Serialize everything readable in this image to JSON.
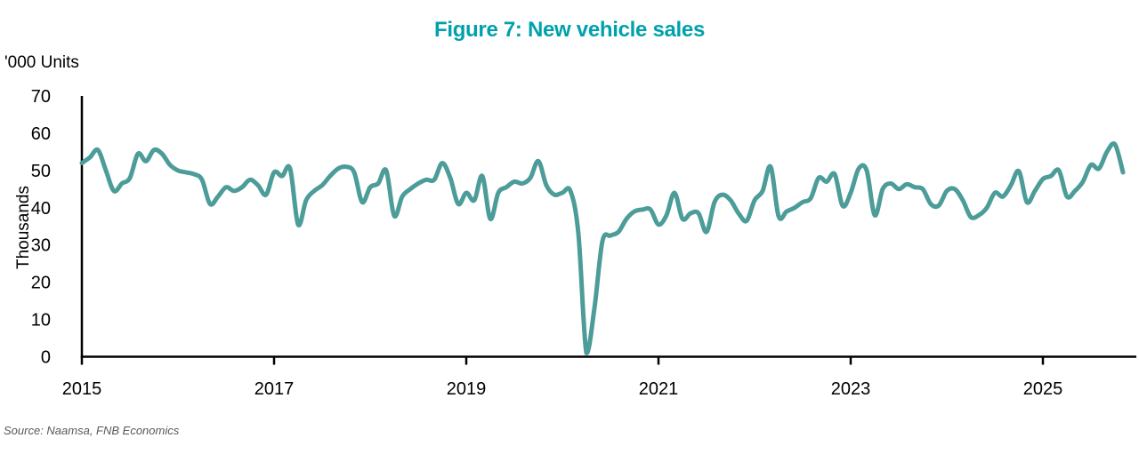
{
  "title": "Figure 7: New vehicle sales",
  "units_label": "'000 Units",
  "y_axis_label": "Thousands",
  "source": "Source: Naamsa, FNB Economics",
  "colors": {
    "title_teal": "#00A1AC",
    "line_teal": "#4C9C99",
    "axis_black": "#000000",
    "source_gray": "#595959"
  },
  "chart_data": {
    "type": "line",
    "title": "Figure 7: New vehicle sales",
    "xlabel": "",
    "ylabel": "Thousands",
    "units": "'000 Units",
    "ylim": [
      0,
      70
    ],
    "y_ticks": [
      0,
      10,
      20,
      30,
      40,
      50,
      60,
      70
    ],
    "x_ticks": [
      2015,
      2017,
      2019,
      2021,
      2023,
      2025
    ],
    "x_start": "2015-01",
    "x_end": "2025-11",
    "frequency": "monthly",
    "grid": false,
    "legend_position": "none",
    "line_smoothing": true,
    "series": [
      {
        "name": "New vehicle sales ('000 units per month)",
        "values": [
          52,
          53.5,
          55.5,
          50,
          44.5,
          46.5,
          48,
          54.5,
          52.5,
          55.5,
          54.5,
          51.5,
          50,
          49.5,
          49,
          47.5,
          41,
          43,
          45.5,
          44.5,
          45.5,
          47.5,
          46,
          43.5,
          49.5,
          48.5,
          50.5,
          35.5,
          42,
          44.5,
          46,
          48.5,
          50.5,
          51,
          49.5,
          41.5,
          45.5,
          46.5,
          50,
          37.8,
          43,
          45,
          46.5,
          47.5,
          47.5,
          52,
          48,
          41,
          44,
          42,
          48.5,
          37,
          44,
          45.5,
          47,
          46.5,
          48,
          52.5,
          46,
          43.5,
          44,
          44.5,
          33,
          1,
          13,
          31,
          32.5,
          33.5,
          37,
          39,
          39.5,
          39.5,
          35.5,
          38,
          44,
          37,
          38.5,
          38.5,
          33.5,
          41.5,
          43.5,
          42,
          38.5,
          36.5,
          42,
          44.5,
          51,
          37.7,
          39,
          40,
          41.5,
          42.5,
          48,
          47,
          49,
          40.5,
          44,
          50.5,
          50,
          38,
          45,
          46.5,
          45,
          46.3,
          45.5,
          45,
          41,
          40.6,
          44.5,
          45,
          42,
          37.5,
          38,
          40,
          44,
          43,
          46,
          49.8,
          41.5,
          44.5,
          47.7,
          48.5,
          50,
          43,
          44.5,
          47,
          51.5,
          50.5,
          55,
          57,
          49.5
        ]
      }
    ]
  }
}
